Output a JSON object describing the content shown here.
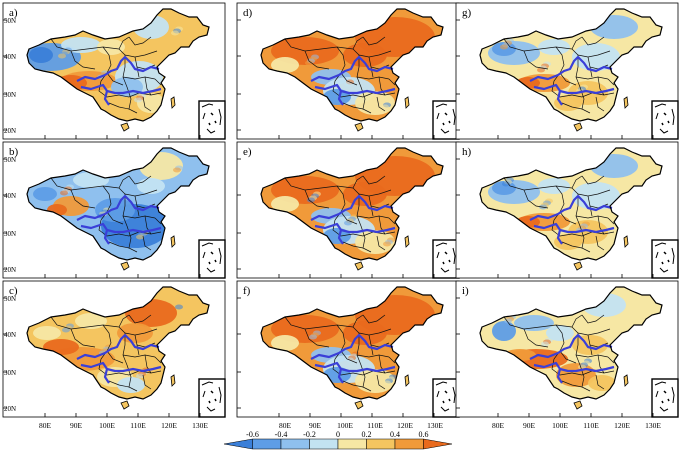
{
  "figure": {
    "panels": [
      {
        "label": "a)",
        "pattern": "mixed-warm"
      },
      {
        "label": "d)",
        "pattern": "strong-positive-north"
      },
      {
        "label": "g)",
        "pattern": "mixed-cool-north"
      },
      {
        "label": "b)",
        "pattern": "negative-east"
      },
      {
        "label": "e)",
        "pattern": "strong-positive-north"
      },
      {
        "label": "h)",
        "pattern": "mixed-cool-north"
      },
      {
        "label": "c)",
        "pattern": "positive-south"
      },
      {
        "label": "f)",
        "pattern": "strong-positive-north"
      },
      {
        "label": "i)",
        "pattern": "positive-tibet"
      }
    ],
    "lat_ticks": [
      "50N",
      "40N",
      "30N",
      "20N"
    ],
    "lon_ticks": [
      "80E",
      "90E",
      "100E",
      "110E",
      "120E",
      "130E"
    ],
    "colorbar": {
      "tick_labels": [
        "-0.6",
        "-0.4",
        "-0.2",
        "0",
        "0.2",
        "0.4",
        "0.6"
      ],
      "colors": [
        "#3b7fd8",
        "#5e9de6",
        "#8fc0ee",
        "#c3e3f2",
        "#f6e7a4",
        "#f4c560",
        "#f09a3a",
        "#e96a1d"
      ]
    }
  }
}
